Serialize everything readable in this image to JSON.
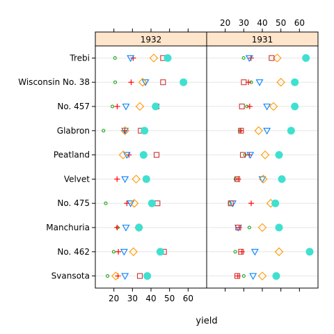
{
  "chart_data": {
    "type": "scatter",
    "xlabel": "yield",
    "xlim": [
      10,
      70
    ],
    "x_ticks": [
      20,
      30,
      40,
      50,
      60
    ],
    "x_tick_labels_bottom": [
      "20",
      "30",
      "40",
      "50",
      "60"
    ],
    "x_tick_labels_top": [
      "20",
      "30",
      "40",
      "50",
      "60"
    ],
    "panels": [
      "1932",
      "1931"
    ],
    "categories": [
      "Trebi",
      "Wisconsin No. 38",
      "No. 457",
      "Glabron",
      "Peatland",
      "Velvet",
      "No. 475",
      "Manchuria",
      "No. 462",
      "Svansota"
    ],
    "grid": true,
    "strip_color": "#ffe5cc",
    "series": [
      {
        "key": "s1",
        "symbol": "circle-small",
        "color": "#00a000",
        "values": {
          "1932": [
            20.6,
            20.7,
            19.2,
            14.4,
            null,
            null,
            15.6,
            22.0,
            19.9,
            16.6
          ],
          "1931": [
            29.9,
            34.0,
            31.7,
            28.0,
            30.6,
            25.5,
            22.5,
            33.0,
            25.4,
            30.0
          ]
        }
      },
      {
        "key": "s2",
        "symbol": "plus",
        "color": "#ff0000",
        "values": {
          "1932": [
            30.4,
            29.3,
            21.8,
            25.9,
            28.1,
            21.7,
            27.0,
            21.7,
            22.4,
            22.2
          ],
          "1931": [
            33.9,
            32.5,
            33.2,
            28.4,
            33.0,
            27.0,
            34.0,
            27.5,
            29.0,
            26.8
          ]
        }
      },
      {
        "key": "s3",
        "symbol": "triangle-down",
        "color": "#0080ff",
        "values": {
          "1932": [
            29.0,
            37.0,
            26.5,
            26.0,
            27.0,
            26.0,
            29.0,
            26.5,
            25.5,
            26.0
          ],
          "1931": [
            33.0,
            38.5,
            42.5,
            42.5,
            33.5,
            40.0,
            24.0,
            27.0,
            36.0,
            35.0
          ]
        }
      },
      {
        "key": "s4",
        "symbol": "diamond",
        "color": "#ff9900",
        "values": {
          "1932": [
            41.5,
            35.5,
            34.0,
            26.0,
            25.0,
            32.0,
            31.0,
            33.5,
            30.5,
            21.0
          ],
          "1931": [
            48.0,
            50.0,
            46.0,
            38.0,
            41.5,
            40.5,
            44.5,
            40.0,
            49.0,
            40.0
          ]
        }
      },
      {
        "key": "s5",
        "symbol": "square",
        "color": "#cc3333",
        "values": {
          "1932": [
            46.5,
            46.5,
            43.0,
            34.5,
            43.0,
            37.5,
            43.5,
            33.5,
            47.0,
            34.0
          ],
          "1931": [
            45.0,
            30.0,
            29.0,
            28.5,
            29.5,
            26.5,
            23.0,
            27.0,
            28.5,
            26.5
          ]
        }
      },
      {
        "key": "s6",
        "symbol": "circle-filled",
        "color": "#40e0d0",
        "values": {
          "1932": [
            49.0,
            57.5,
            42.5,
            36.5,
            36.0,
            37.5,
            40.5,
            33.5,
            45.0,
            38.0
          ],
          "1931": [
            63.5,
            57.5,
            57.5,
            55.5,
            49.0,
            50.5,
            47.0,
            49.0,
            65.5,
            47.5
          ]
        }
      }
    ]
  }
}
